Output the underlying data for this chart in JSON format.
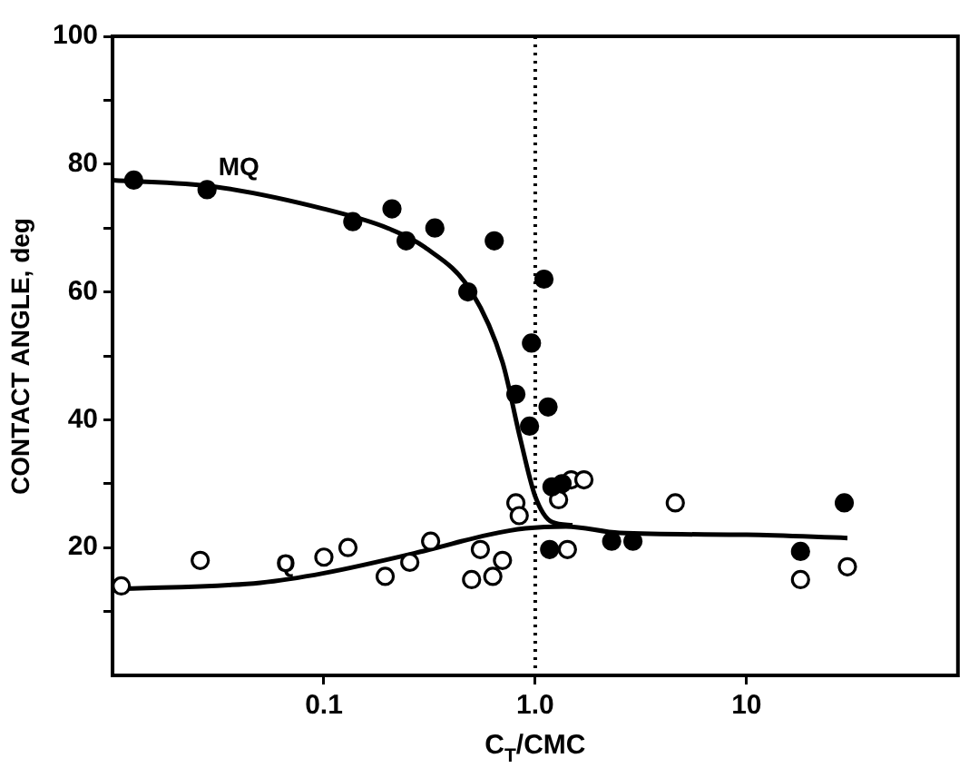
{
  "chart_data": {
    "type": "scatter",
    "xlabel": "C$_{T}$/CMC",
    "ylabel": "CONTACT ANGLE, deg",
    "log": "x",
    "xlim": [
      0.01,
      100
    ],
    "xticks": [
      {
        "value": 0.1,
        "label": "0.1"
      },
      {
        "value": 1,
        "label": "1.0"
      },
      {
        "value": 10,
        "label": "10"
      }
    ],
    "ylim": [
      0,
      100
    ],
    "yticks": [
      {
        "value": 10,
        "label": null
      },
      20,
      {
        "value": 30,
        "label": null
      },
      40,
      {
        "value": 50,
        "label": null
      },
      60,
      {
        "value": 70,
        "label": null
      },
      80,
      {
        "value": 90,
        "label": null
      },
      100
    ],
    "grid": false,
    "legend": false,
    "marker": "circle",
    "ref_lines": [
      {
        "axis": "x",
        "value": 1,
        "line_style": "dotted",
        "color": "#000000"
      }
    ],
    "series": [
      {
        "color": "#000000",
        "x": [
          0.0126,
          0.028,
          0.137,
          0.21,
          0.245,
          0.335,
          0.48,
          0.64,
          1.1,
          0.96,
          0.81,
          1.15,
          0.94,
          1.2,
          1.34,
          1.17,
          2.3,
          2.9,
          18,
          29
        ],
        "values": [
          77.5,
          76,
          71,
          73,
          68,
          70,
          60,
          68,
          62,
          52,
          44,
          42,
          39,
          29.5,
          30,
          19.7,
          21,
          21,
          19.4,
          27
        ]
      },
      {
        "color": "#000000",
        "x": [
          0.011,
          0.026,
          0.1,
          0.13,
          0.195,
          0.255,
          0.32,
          0.55,
          0.5,
          0.63,
          0.7,
          0.81,
          0.84,
          1.48,
          1.7,
          1.42,
          1.29,
          4.6,
          18,
          30
        ],
        "values": [
          14,
          18,
          18.5,
          20,
          15.5,
          17.7,
          21,
          19.7,
          15,
          15.5,
          18,
          27,
          25,
          30.6,
          30.6,
          19.7,
          27.5,
          27,
          15,
          17
        ]
      },
      {
        "type": "line",
        "name": "MQ",
        "color": "#000000",
        "marker": "none",
        "x": [
          0.01,
          0.03,
          0.1,
          0.2,
          0.3,
          0.5,
          0.7,
          0.85,
          1.0,
          1.2,
          1.5
        ],
        "values": [
          77.5,
          76.5,
          73,
          70,
          67,
          60,
          49,
          37,
          28,
          24,
          23.5
        ]
      },
      {
        "type": "line",
        "name": "Q",
        "color": "#000000",
        "marker": "none",
        "x": [
          0.01,
          0.05,
          0.1,
          0.3,
          0.6,
          0.9,
          1.4,
          2.5,
          10,
          30
        ],
        "values": [
          13.5,
          14.5,
          16,
          19.5,
          22,
          23,
          23.3,
          22.3,
          22,
          21.5
        ]
      }
    ]
  }
}
